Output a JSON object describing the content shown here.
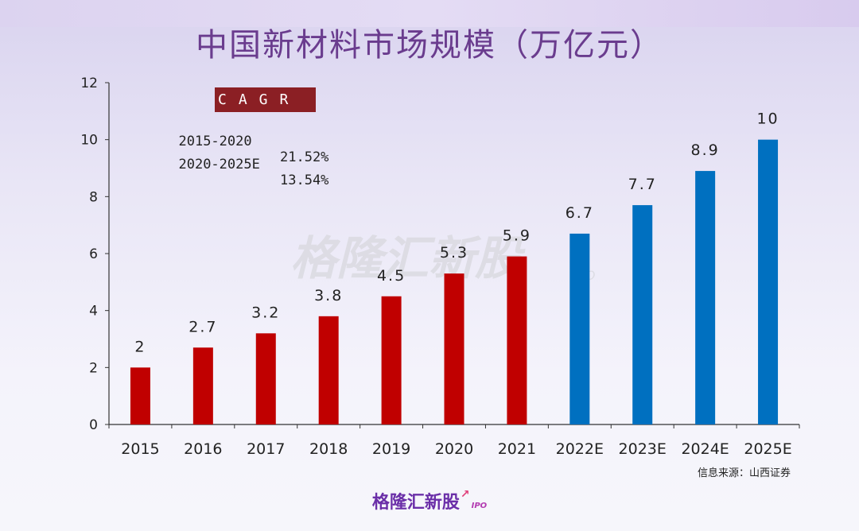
{
  "title": "中国新材料市场规模（万亿元）",
  "source": "信息来源：山西证券",
  "watermark": "格隆汇新股",
  "watermark_sub": "IPO",
  "footer_logo": "格隆汇新股",
  "footer_logo_sub": "IPO",
  "cagr": {
    "header": "CAGR",
    "rows": [
      {
        "period": "2015-2020",
        "rate": "21.52%"
      },
      {
        "period": "2020-2025E",
        "rate": "13.54%"
      }
    ]
  },
  "colors": {
    "actual": "#c00000",
    "forecast": "#0070c0",
    "title": "#6a3c8e"
  },
  "chart_data": {
    "type": "bar",
    "title": "中国新材料市场规模（万亿元）",
    "xlabel": "",
    "ylabel": "",
    "ylim": [
      0,
      12
    ],
    "yticks": [
      0,
      2,
      4,
      6,
      8,
      10,
      12
    ],
    "grid": false,
    "categories": [
      "2015",
      "2016",
      "2017",
      "2018",
      "2019",
      "2020",
      "2021",
      "2022E",
      "2023E",
      "2024E",
      "2025E"
    ],
    "values": [
      2,
      2.7,
      3.2,
      3.8,
      4.5,
      5.3,
      5.9,
      6.7,
      7.7,
      8.9,
      10
    ],
    "data_labels": [
      "2",
      "2.7",
      "3.2",
      "3.8",
      "4.5",
      "5.3",
      "5.9",
      "6.7",
      "7.7",
      "8.9",
      "10"
    ],
    "bar_kind": [
      "actual",
      "actual",
      "actual",
      "actual",
      "actual",
      "actual",
      "actual",
      "forecast",
      "forecast",
      "forecast",
      "forecast"
    ]
  }
}
